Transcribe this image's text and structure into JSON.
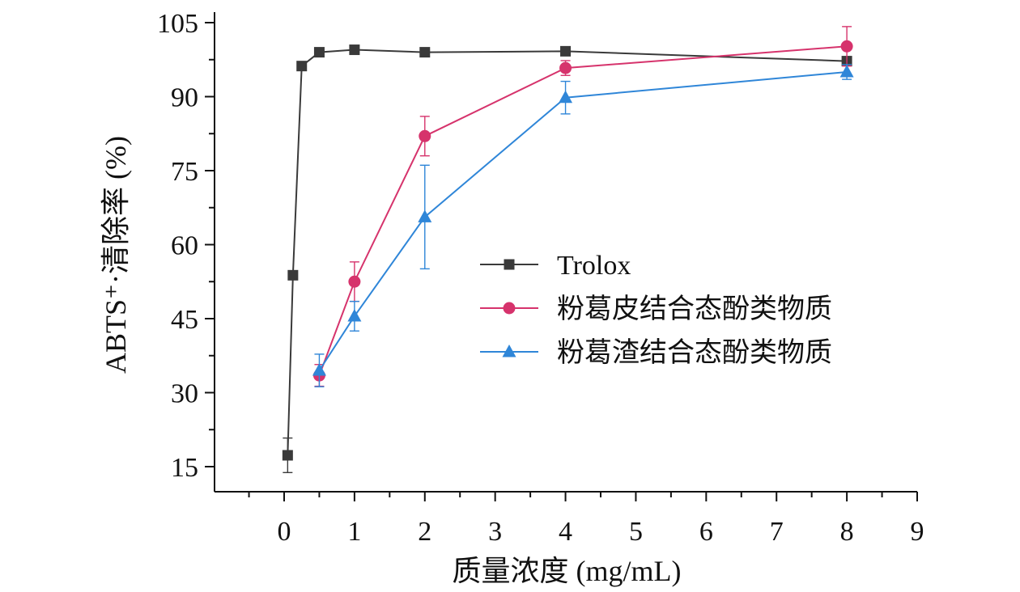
{
  "chart_data": {
    "type": "line",
    "title": "",
    "xlabel": "质量浓度 (mg/mL)",
    "ylabel": "ABTS⁺·清除率 (%)",
    "xlim": [
      -1,
      9
    ],
    "ylim": [
      10,
      105
    ],
    "x_ticks": [
      "0",
      "1",
      "2",
      "3",
      "4",
      "5",
      "6",
      "7",
      "8",
      "9"
    ],
    "y_ticks": [
      15,
      30,
      45,
      60,
      75,
      90,
      105
    ],
    "legend_position": "center-right",
    "grid": false,
    "series": [
      {
        "name": "Trolox",
        "color": "#3a3a3a",
        "marker": "square",
        "x": [
          0.05,
          0.125,
          0.25,
          0.5,
          1,
          2,
          4,
          8
        ],
        "y": [
          17.3,
          53.8,
          96.2,
          99.0,
          99.5,
          99.0,
          99.2,
          97.2
        ],
        "err": [
          3.5,
          0.6,
          0.6,
          0.4,
          0.4,
          0.3,
          0.4,
          0.8
        ]
      },
      {
        "name": "粉葛皮结合态酚类物质",
        "color": "#d6336c",
        "marker": "circle",
        "x": [
          0.5,
          1,
          2,
          4,
          8
        ],
        "y": [
          33.5,
          52.5,
          82.0,
          95.8,
          100.2
        ],
        "err": [
          2.2,
          4.0,
          4.0,
          1.5,
          4.0
        ]
      },
      {
        "name": "粉葛渣结合态酚类物质",
        "color": "#2f86d8",
        "marker": "triangle",
        "x": [
          0.5,
          1,
          2,
          4,
          8
        ],
        "y": [
          34.5,
          45.5,
          65.6,
          89.8,
          95.0
        ],
        "err": [
          3.3,
          3.0,
          10.5,
          3.3,
          1.5
        ]
      }
    ]
  }
}
